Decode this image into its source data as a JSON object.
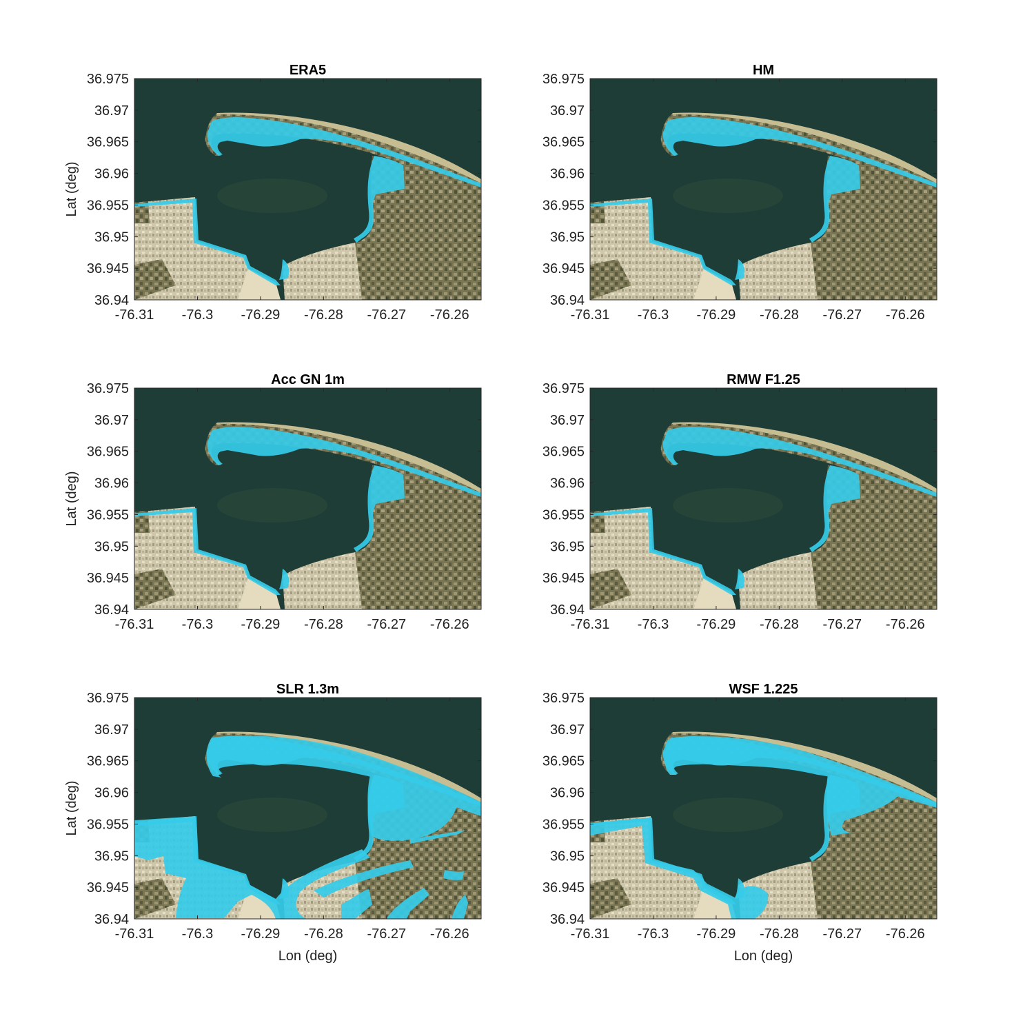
{
  "figure": {
    "xlabel": "Lon (deg)",
    "ylabel": "Lat (deg)",
    "xticks": [
      "-76.31",
      "-76.3",
      "-76.29",
      "-76.28",
      "-76.27",
      "-76.26"
    ],
    "yticks": [
      "36.975",
      "36.97",
      "36.965",
      "36.96",
      "36.955",
      "36.95",
      "36.945",
      "36.94"
    ],
    "xlim": [
      -76.31,
      -76.255
    ],
    "ylim": [
      36.94,
      36.975
    ],
    "colors": {
      "water": "#1f3d37",
      "land": "#6f6b4a",
      "urban": "#c9c1a5",
      "flood": "#35cbe8",
      "frame": "#262626"
    }
  },
  "panels": [
    {
      "title": "ERA5",
      "flood_extent": "shoreline",
      "show_ylabel": true,
      "show_xlabel": false
    },
    {
      "title": "HM",
      "flood_extent": "shoreline",
      "show_ylabel": false,
      "show_xlabel": false
    },
    {
      "title": "Acc GN 1m",
      "flood_extent": "shoreline",
      "show_ylabel": true,
      "show_xlabel": false
    },
    {
      "title": "RMW F1.25",
      "flood_extent": "shoreline",
      "show_ylabel": false,
      "show_xlabel": false
    },
    {
      "title": "SLR 1.3m",
      "flood_extent": "extensive",
      "show_ylabel": true,
      "show_xlabel": true
    },
    {
      "title": "WSF 1.225",
      "flood_extent": "moderate",
      "show_ylabel": false,
      "show_xlabel": true
    }
  ]
}
